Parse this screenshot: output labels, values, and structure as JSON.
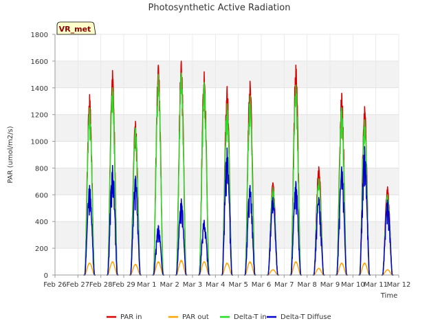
{
  "chart_data": {
    "type": "line",
    "title": "Photosynthetic Active Radiation",
    "xlabel": "Time",
    "ylabel": "PAR (umol/m2/s)",
    "ylim": [
      0,
      1800
    ],
    "yticks": [
      0,
      200,
      400,
      600,
      800,
      1000,
      1200,
      1400,
      1600,
      1800
    ],
    "xlim_days": [
      0,
      15
    ],
    "xtick_labels": [
      "Feb 26",
      "Feb 27",
      "Feb 28",
      "Feb 29",
      "Mar 1",
      "Mar 2",
      "Mar 3",
      "Mar 4",
      "Mar 5",
      "Mar 6",
      "Mar 7",
      "Mar 8",
      "Mar 9",
      "Mar 10",
      "Mar 11",
      "Mar 12"
    ],
    "site_badge": "VR_met",
    "grid": true,
    "legend_position": "bottom",
    "days": [
      "Feb 27",
      "Feb 28",
      "Feb 29",
      "Mar 1",
      "Mar 2",
      "Mar 3",
      "Mar 4",
      "Mar 5",
      "Mar 6",
      "Mar 7",
      "Mar 8",
      "Mar 9",
      "Mar 10",
      "Mar 11"
    ],
    "series": [
      {
        "name": "PAR in",
        "color": "#dd0000",
        "daily_peaks": [
          1350,
          1530,
          1150,
          1570,
          1600,
          1520,
          1410,
          1450,
          690,
          1570,
          810,
          1360,
          1260,
          660
        ]
      },
      {
        "name": "PAR out",
        "color": "#ffa500",
        "daily_peaks": [
          90,
          100,
          80,
          100,
          110,
          100,
          90,
          100,
          40,
          100,
          50,
          90,
          90,
          40
        ]
      },
      {
        "name": "Delta-T in",
        "color": "#22dd22",
        "daily_peaks": [
          1250,
          1400,
          1100,
          1500,
          1510,
          1440,
          1280,
          1340,
          650,
          1420,
          720,
          1250,
          1160,
          600
        ]
      },
      {
        "name": "Delta-T Diffuse",
        "color": "#0000cc",
        "daily_peaks": [
          670,
          820,
          740,
          370,
          570,
          410,
          950,
          670,
          580,
          700,
          580,
          810,
          960,
          560
        ]
      }
    ]
  }
}
